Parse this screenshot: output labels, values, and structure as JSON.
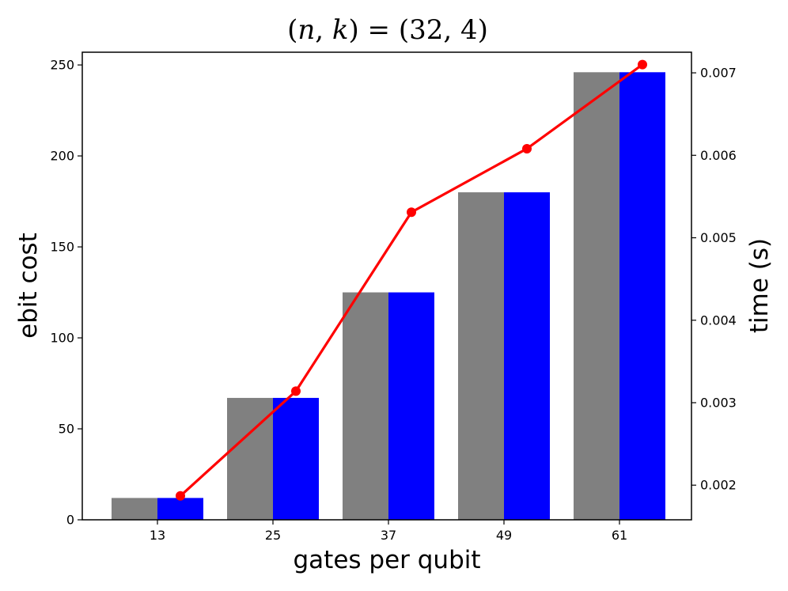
{
  "chart_data": {
    "type": "bar",
    "title": "(n, k) = (32, 4)",
    "title_parts": {
      "open": "(",
      "n": "n",
      "comma": ", ",
      "k": "k",
      "rest": ") = (32, 4)"
    },
    "xlabel": "gates per qubit",
    "ylabel_left": "ebit cost",
    "ylabel_right": "time (s)",
    "categories": [
      "13",
      "25",
      "37",
      "49",
      "61"
    ],
    "series": [
      {
        "values": [
          12,
          67,
          125,
          180,
          246
        ],
        "color": "#808080",
        "axis": "left"
      },
      {
        "values": [
          12,
          67,
          125,
          180,
          246
        ],
        "color": "#0000ff",
        "axis": "left"
      }
    ],
    "line": {
      "values": [
        0.00187,
        0.00314,
        0.00531,
        0.00608,
        0.0071
      ],
      "color": "#ff0000",
      "axis": "right"
    },
    "ylim_left": [
      0,
      257
    ],
    "yticks_left": [
      0,
      50,
      100,
      150,
      200,
      250
    ],
    "ylim_right": [
      0.00158,
      0.00725
    ],
    "yticks_right": [
      0.002,
      0.003,
      0.004,
      0.005,
      0.006,
      0.007
    ],
    "yticks_right_labels": [
      "0.002",
      "0.003",
      "0.004",
      "0.005",
      "0.006",
      "0.007"
    ],
    "grid": false
  }
}
